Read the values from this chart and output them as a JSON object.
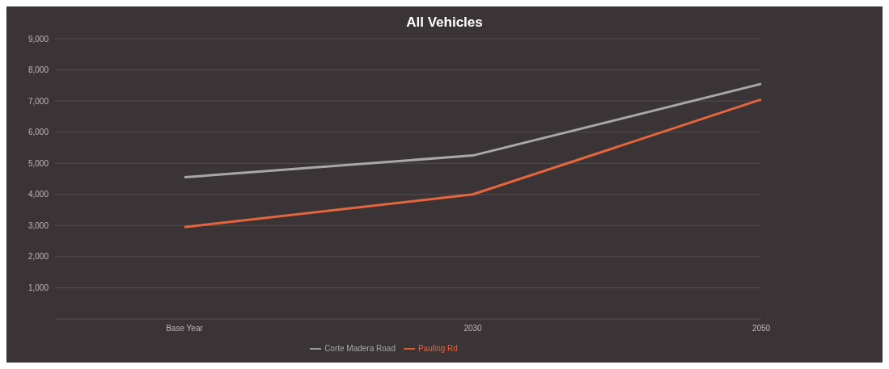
{
  "chart_data": {
    "type": "line",
    "title": "All Vehicles",
    "categories": [
      "Base Year",
      "2030",
      "2050"
    ],
    "series": [
      {
        "name": "Pauling Rd",
        "color": "#e8643c",
        "values": [
          2950,
          4000,
          7050
        ]
      },
      {
        "name": "Corte Madera Road",
        "color": "#a8a8a8",
        "values": [
          4550,
          5250,
          7550
        ]
      }
    ],
    "ylim": [
      0,
      9000
    ],
    "yticks": [
      {
        "value": 1000,
        "label": "1,000"
      },
      {
        "value": 2000,
        "label": "2,000"
      },
      {
        "value": 3000,
        "label": "3,000"
      },
      {
        "value": 4000,
        "label": "4,000"
      },
      {
        "value": 5000,
        "label": "5,000"
      },
      {
        "value": 6000,
        "label": "6,000"
      },
      {
        "value": 7000,
        "label": "7,000"
      },
      {
        "value": 8000,
        "label": "8,000"
      },
      {
        "value": 9000,
        "label": "9,000"
      }
    ],
    "grid": "y",
    "legend": "bottom",
    "marker": "none",
    "line_style": "solid"
  }
}
